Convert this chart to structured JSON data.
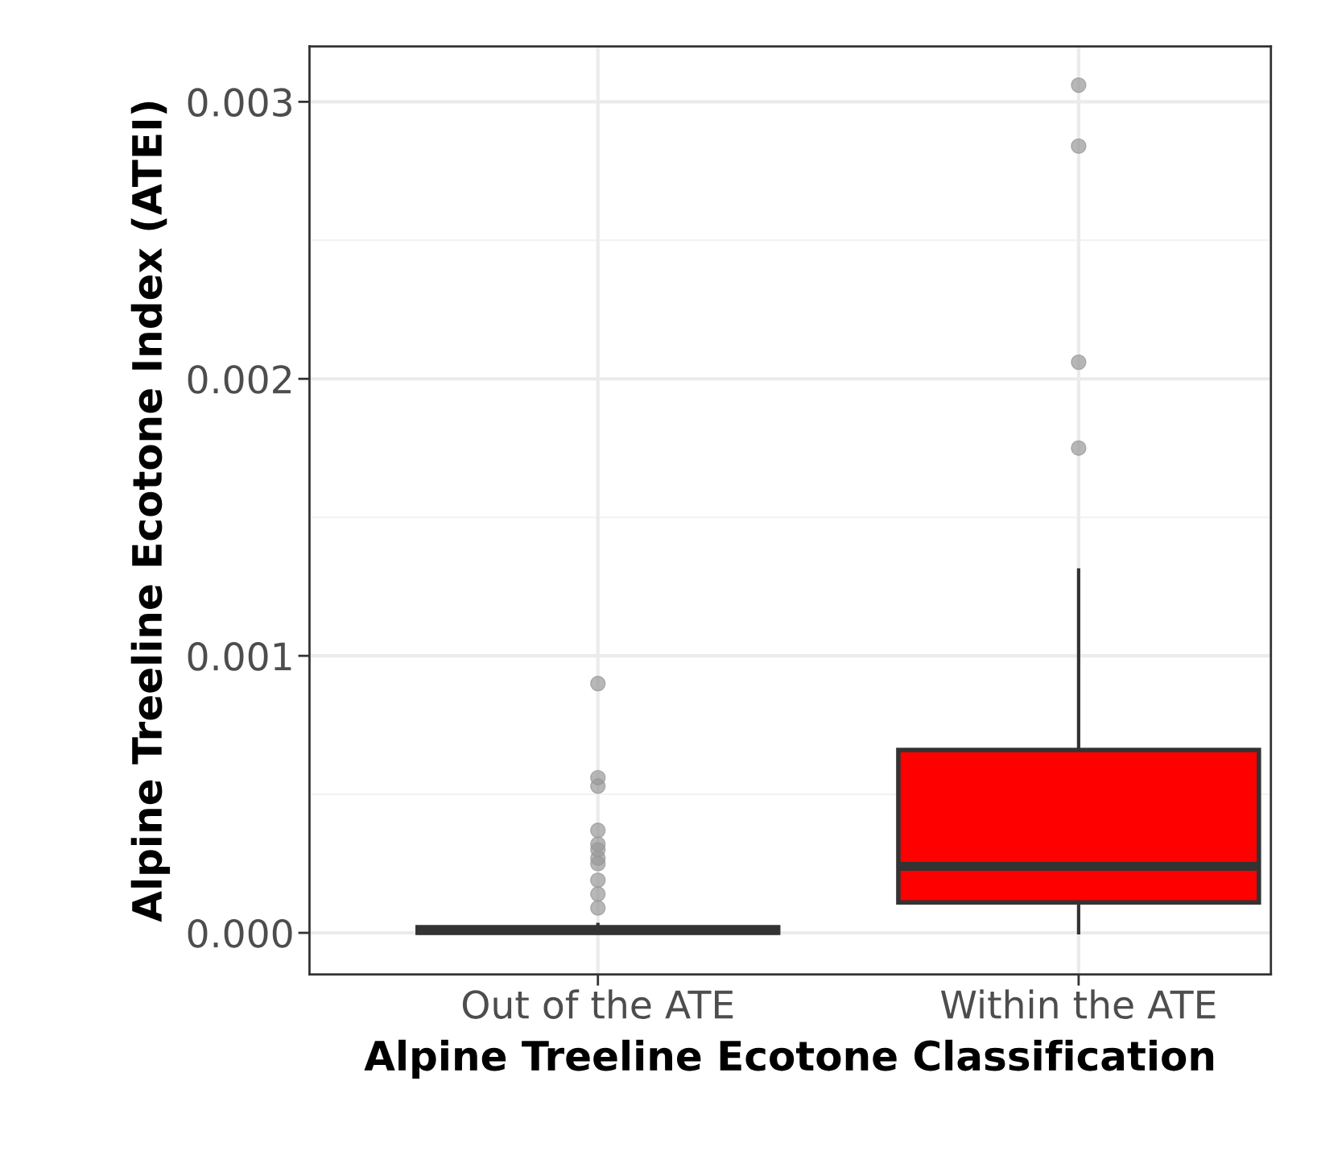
{
  "chart_data": {
    "type": "box",
    "xlabel": "Alpine Treeline Ecotone Classification",
    "ylabel": "Alpine Treeline Ecotone Index (ATEI)",
    "categories": [
      "Out of the ATE",
      "Within the ATE"
    ],
    "colors": [
      "#ffffff",
      "#ff0000"
    ],
    "boxes": [
      {
        "low": 0.0,
        "q1": 0.0,
        "median": 1e-05,
        "q3": 2e-05,
        "high": 3e-05,
        "outliers": [
          0.0009,
          0.00056,
          0.00053,
          0.00037,
          0.00032,
          0.0003,
          0.00027,
          0.00025,
          0.00019,
          0.00014,
          9e-05
        ]
      },
      {
        "low": 0.0,
        "q1": 0.00011,
        "median": 0.00024,
        "q3": 0.00066,
        "high": 0.00131,
        "outliers": [
          0.00306,
          0.00284,
          0.00206,
          0.00175
        ]
      }
    ],
    "ylim": [
      -0.00015,
      0.0032
    ],
    "yticks": [
      {
        "value": 0,
        "label": "0.000"
      },
      0.001,
      0.002,
      0.003
    ],
    "grid": true
  }
}
